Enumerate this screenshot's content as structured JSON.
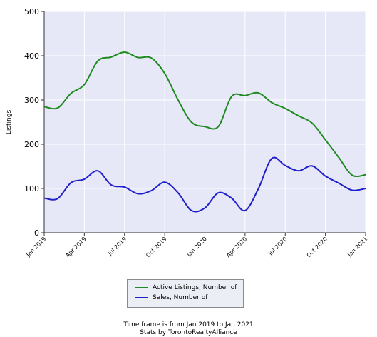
{
  "chart_data": {
    "type": "line",
    "title": "",
    "xlabel": "",
    "ylabel": "Listings",
    "ylim": [
      0,
      500
    ],
    "yticks": [
      "0",
      "100",
      "200",
      "300",
      "400",
      "500"
    ],
    "xticks": [
      "Jan 2019",
      "Apr 2019",
      "Jul 2019",
      "Oct 2019",
      "Jan 2020",
      "Apr 2020",
      "Jul 2020",
      "Oct 2020",
      "Jan 2021"
    ],
    "x": [
      "Jan 2019",
      "Feb 2019",
      "Mar 2019",
      "Apr 2019",
      "May 2019",
      "Jun 2019",
      "Jul 2019",
      "Aug 2019",
      "Sep 2019",
      "Oct 2019",
      "Nov 2019",
      "Dec 2019",
      "Jan 2020",
      "Feb 2020",
      "Mar 2020",
      "Apr 2020",
      "May 2020",
      "Jun 2020",
      "Jul 2020",
      "Aug 2020",
      "Sep 2020",
      "Oct 2020",
      "Nov 2020",
      "Dec 2020",
      "Jan 2021"
    ],
    "grid": true,
    "legend_position": "bottom",
    "background": "#e6e8f8",
    "series": [
      {
        "name": "Active Listings, Number of",
        "color": "#1f8a1f",
        "values": [
          285,
          282,
          315,
          335,
          388,
          397,
          408,
          396,
          395,
          360,
          300,
          250,
          240,
          240,
          308,
          310,
          316,
          294,
          281,
          264,
          248,
          210,
          170,
          130,
          131
        ]
      },
      {
        "name": "Sales, Number of",
        "color": "#1f1fcc",
        "values": [
          78,
          77,
          113,
          121,
          140,
          108,
          103,
          88,
          95,
          114,
          90,
          50,
          56,
          90,
          78,
          50,
          100,
          168,
          152,
          140,
          151,
          128,
          112,
          96,
          100
        ]
      }
    ]
  },
  "caption": {
    "line1": "Time frame is from Jan 2019 to Jan 2021",
    "line2": "Stats by TorontoRealtyAlliance"
  }
}
